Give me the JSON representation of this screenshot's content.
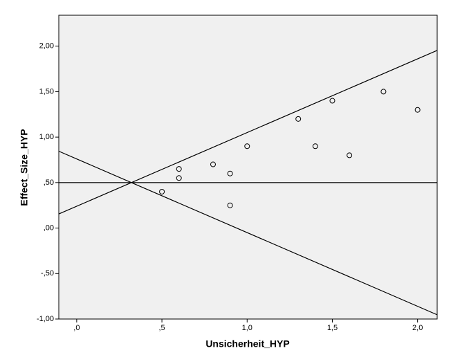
{
  "chart_data": {
    "type": "scatter",
    "x_label": "Unsicherheit_HYP",
    "y_label": "Effect_Size_HYP",
    "x": [
      0.5,
      0.6,
      0.6,
      0.8,
      0.9,
      0.9,
      1.0,
      1.3,
      1.4,
      1.5,
      1.6,
      1.8,
      2.0
    ],
    "values": [
      0.4,
      0.65,
      0.55,
      0.7,
      0.6,
      0.25,
      0.9,
      1.2,
      0.9,
      1.4,
      0.8,
      1.5,
      1.3
    ],
    "xlim": [
      -0.105,
      2.115
    ],
    "ylim": [
      -1,
      2.34
    ],
    "xticks": [
      {
        "value": 0,
        "label": ",0"
      },
      {
        "value": 0.5,
        "label": ",5"
      },
      {
        "value": 1,
        "label": "1,0"
      },
      {
        "value": 1.5,
        "label": "1,5"
      },
      {
        "value": 2,
        "label": "2,0"
      }
    ],
    "yticks": [
      {
        "value": -1,
        "label": "-1,00"
      },
      {
        "value": -0.5,
        "label": "-,50"
      },
      {
        "value": 0,
        "label": ",00"
      },
      {
        "value": 0.5,
        "label": ",50"
      },
      {
        "value": 1,
        "label": "1,00"
      },
      {
        "value": 1.5,
        "label": "1,50"
      },
      {
        "value": 2,
        "label": "2,00"
      }
    ],
    "reference_lines": [
      {
        "intercept": 0.5,
        "slope": 0
      },
      {
        "intercept": 0.24,
        "slope": 0.81
      },
      {
        "intercept": 0.76,
        "slope": -0.81
      }
    ],
    "marker_color": "#000000",
    "plot_background": "#f0f0f0"
  }
}
